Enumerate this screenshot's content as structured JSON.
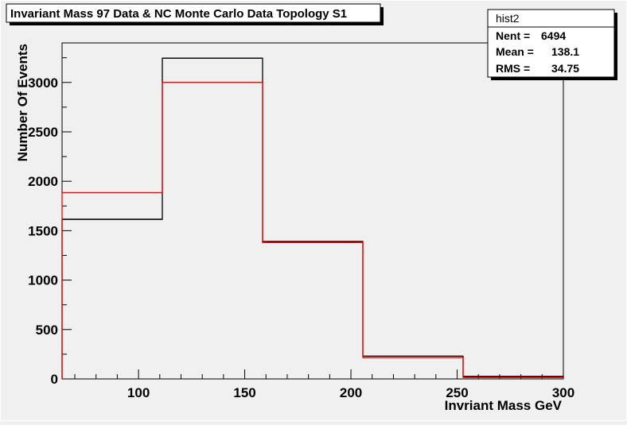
{
  "chart_data": {
    "type": "bar",
    "title": "Invariant Mass 97 Data & NC Monte Carlo Data Topology S1",
    "xlabel": "Invriant Mass GeV",
    "ylabel": "Number Of Events",
    "xlim": [
      64,
      300
    ],
    "ylim": [
      0,
      3400
    ],
    "x_ticks": [
      100,
      150,
      200,
      250,
      300
    ],
    "y_ticks": [
      0,
      500,
      1000,
      1500,
      2000,
      2500,
      3000
    ],
    "bin_edges": [
      64,
      111.2,
      158.4,
      205.6,
      252.8,
      300
    ],
    "series": [
      {
        "values": [
          1615,
          3245,
          1390,
          230,
          25
        ],
        "color": "#000000"
      },
      {
        "values": [
          1885,
          3000,
          1380,
          215,
          15
        ],
        "color": "#ff0000"
      }
    ],
    "stats": {
      "name": "hist2",
      "rows": [
        {
          "label": "Nent =",
          "value": "6494"
        },
        {
          "label": "Mean  =",
          "value": "138.1"
        },
        {
          "label": "RMS   =",
          "value": "34.75"
        }
      ]
    }
  }
}
